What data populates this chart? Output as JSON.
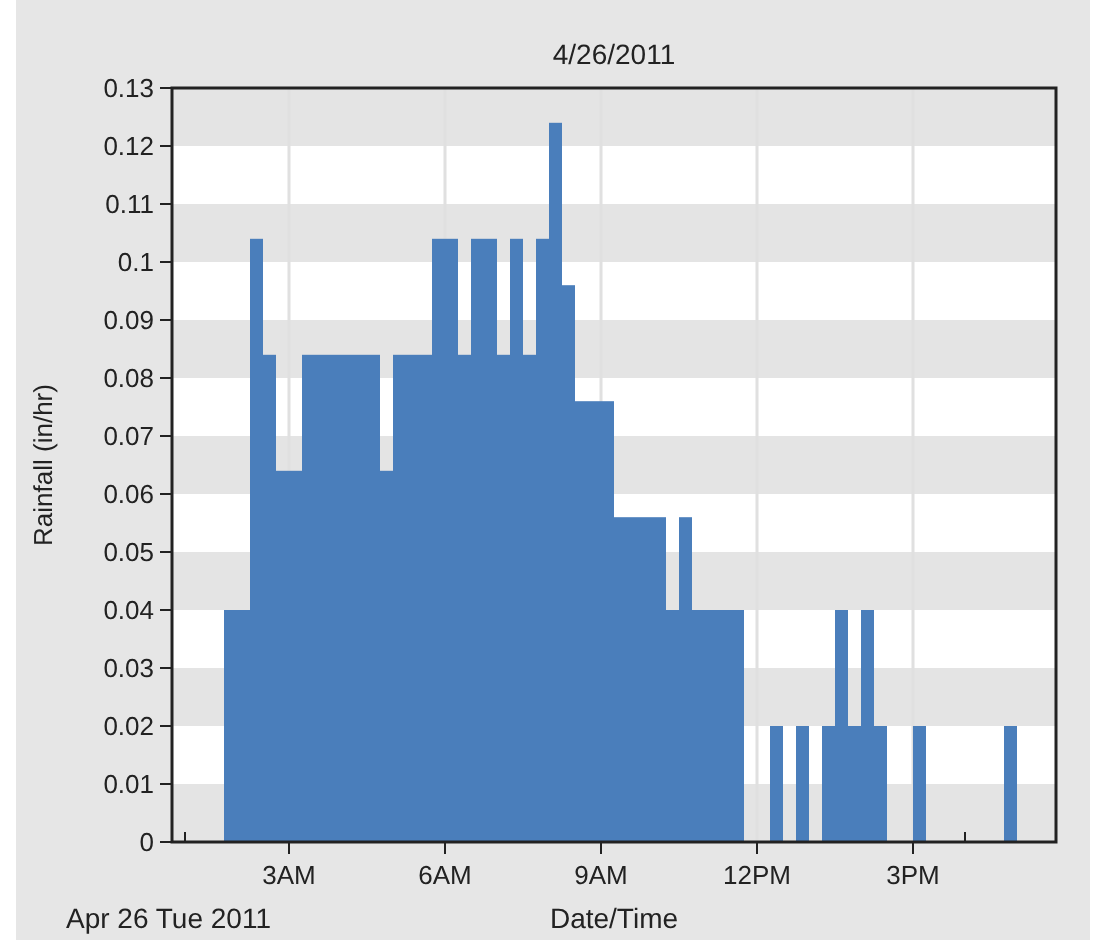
{
  "chart_data": {
    "type": "histogram",
    "title": "4/26/2011",
    "xlabel": "Date/Time",
    "ylabel": "Rainfall (in/hr)",
    "annotations": [
      "Apr 26 Tue 2011"
    ],
    "color": "#4a7ebb",
    "bins": [
      "2011-04-26T01:45",
      "2011-04-26T02:00",
      "2011-04-26T02:15",
      "2011-04-26T02:30",
      "2011-04-26T02:45",
      "2011-04-26T03:00",
      "2011-04-26T03:15",
      "2011-04-26T03:30",
      "2011-04-26T03:45",
      "2011-04-26T04:00",
      "2011-04-26T04:15",
      "2011-04-26T04:30",
      "2011-04-26T04:45",
      "2011-04-26T05:00",
      "2011-04-26T05:15",
      "2011-04-26T05:30",
      "2011-04-26T05:45",
      "2011-04-26T06:00",
      "2011-04-26T06:15",
      "2011-04-26T06:30",
      "2011-04-26T06:45",
      "2011-04-26T07:00",
      "2011-04-26T07:15",
      "2011-04-26T07:30",
      "2011-04-26T07:45",
      "2011-04-26T08:00",
      "2011-04-26T08:15",
      "2011-04-26T08:30",
      "2011-04-26T08:45",
      "2011-04-26T09:00",
      "2011-04-26T09:15",
      "2011-04-26T09:30",
      "2011-04-26T09:45",
      "2011-04-26T10:00",
      "2011-04-26T10:15",
      "2011-04-26T10:30",
      "2011-04-26T10:45",
      "2011-04-26T11:00",
      "2011-04-26T11:15",
      "2011-04-26T11:30",
      "2011-04-26T11:45",
      "2011-04-26T12:00",
      "2011-04-26T12:15",
      "2011-04-26T12:30",
      "2011-04-26T12:45",
      "2011-04-26T13:00",
      "2011-04-26T13:15",
      "2011-04-26T13:30",
      "2011-04-26T13:45",
      "2011-04-26T14:00",
      "2011-04-26T14:15",
      "2011-04-26T14:30",
      "2011-04-26T14:45",
      "2011-04-26T15:00",
      "2011-04-26T15:15",
      "2011-04-26T15:30",
      "2011-04-26T15:45",
      "2011-04-26T16:00",
      "2011-04-26T16:15",
      "2011-04-26T16:30",
      "2011-04-26T16:45",
      "2011-04-26T17:00"
    ],
    "values": [
      0.04,
      0.04,
      0.104,
      0.084,
      0.064,
      0.064,
      0.084,
      0.084,
      0.084,
      0.084,
      0.084,
      0.084,
      0.064,
      0.084,
      0.084,
      0.084,
      0.104,
      0.104,
      0.084,
      0.104,
      0.104,
      0.084,
      0.104,
      0.084,
      0.104,
      0.124,
      0.096,
      0.076,
      0.076,
      0.076,
      0.056,
      0.056,
      0.056,
      0.056,
      0.04,
      0.056,
      0.04,
      0.04,
      0.04,
      0.04,
      0,
      0,
      0.02,
      0,
      0.02,
      0,
      0.02,
      0.04,
      0.02,
      0.04,
      0.02,
      0,
      0,
      0.02,
      0,
      0,
      0,
      0,
      0,
      0,
      0.02
    ],
    "xlim": [
      "2011-04-26T00:45",
      "2011-04-26T17:45"
    ],
    "xticks": [
      {
        "value": "2011-04-26T01:00",
        "label": null
      },
      {
        "value": "2011-04-26T03:00",
        "label": "3AM"
      },
      {
        "value": "2011-04-26T06:00",
        "label": "6AM"
      },
      {
        "value": "2011-04-26T09:00",
        "label": "9AM"
      },
      {
        "value": "2011-04-26T12:00",
        "label": "12PM"
      },
      {
        "value": "2011-04-26T15:00",
        "label": "3PM"
      },
      {
        "value": "2011-04-26T16:00",
        "label": null
      }
    ],
    "ylim": [
      0,
      0.13
    ],
    "yticks": [
      0,
      0.01,
      0.02,
      0.03,
      0.04,
      0.05,
      0.06,
      0.07,
      0.08,
      0.09,
      0.1,
      0.11,
      0.12,
      0.13
    ],
    "grid": true
  }
}
